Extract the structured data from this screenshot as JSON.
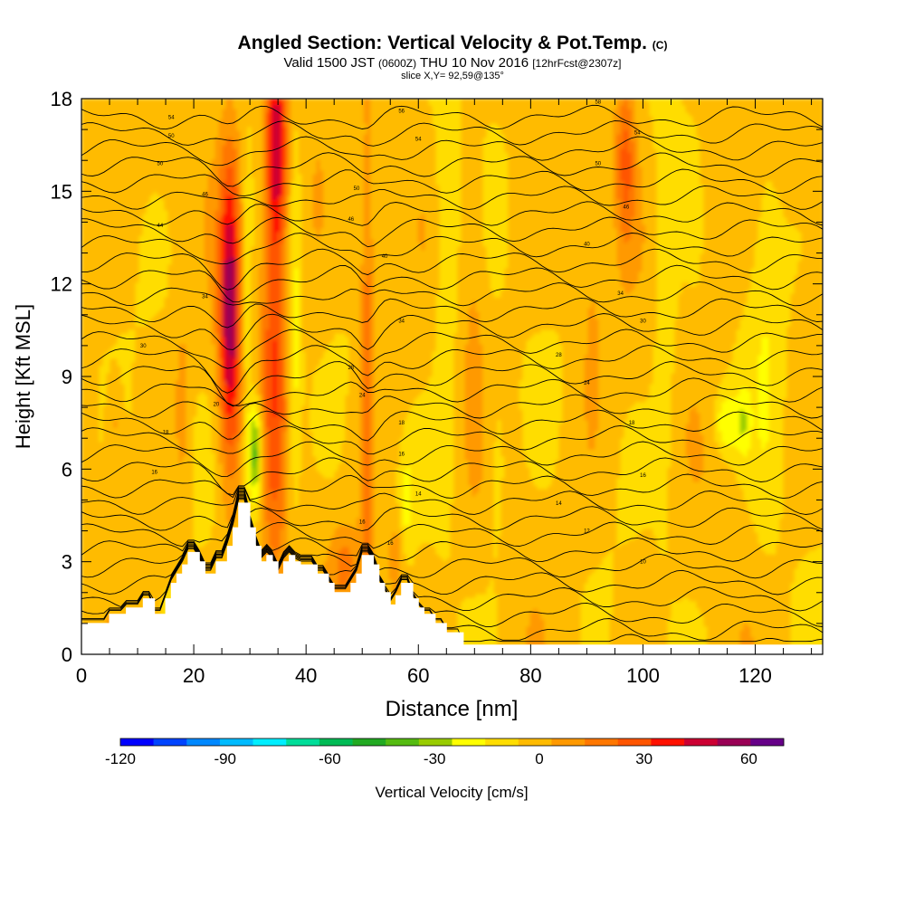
{
  "title": {
    "main": "Angled Section: Vertical Velocity & Pot.Temp.",
    "main_suffix": "(C)",
    "valid_prefix": "Valid 1500 JST",
    "valid_utc": "(0600Z)",
    "valid_date": "THU 10 Nov 2016",
    "valid_fcst": "[12hrFcst@2307z]",
    "slice": "slice X,Y= 92,59@135°"
  },
  "chart_data": {
    "type": "heatmap",
    "xlabel": "Distance [nm]",
    "ylabel": "Height [Kft MSL]",
    "xlim": [
      0,
      132
    ],
    "ylim": [
      0,
      18
    ],
    "x_ticks": [
      0,
      20,
      40,
      60,
      80,
      100,
      120
    ],
    "x_tick_labels": [
      "0",
      "20",
      "40",
      "60",
      "80",
      "100",
      "120"
    ],
    "y_ticks": [
      0,
      3,
      6,
      9,
      12,
      15,
      18
    ],
    "y_tick_labels": [
      "0",
      "3",
      "6",
      "9",
      "12",
      "15",
      "18"
    ],
    "colorbar": {
      "label": "Vertical Velocity [cm/s]",
      "min": -120,
      "max": 70,
      "step": 10,
      "tick_values": [
        -120,
        -90,
        -60,
        -30,
        0,
        30,
        60
      ],
      "tick_labels": [
        "-120",
        "-90",
        "-60",
        "-30",
        "0",
        "30",
        "60"
      ],
      "colors": [
        "#0000ff",
        "#0044ff",
        "#0088ff",
        "#00bbff",
        "#00eeff",
        "#00dd99",
        "#00bb55",
        "#22aa22",
        "#55bb11",
        "#99cc00",
        "#ffff00",
        "#ffdd00",
        "#ffbb00",
        "#ff9900",
        "#ff7700",
        "#ff5500",
        "#ff1100",
        "#cc0033",
        "#990055",
        "#660088"
      ]
    },
    "terrain_kft": [
      [
        0,
        1
      ],
      [
        5,
        1
      ],
      [
        5,
        1.3
      ],
      [
        8,
        1.3
      ],
      [
        8,
        1.5
      ],
      [
        11,
        1.5
      ],
      [
        11,
        1.8
      ],
      [
        13,
        1.8
      ],
      [
        13,
        1.3
      ],
      [
        15,
        1.3
      ],
      [
        15,
        1.8
      ],
      [
        16,
        1.8
      ],
      [
        16,
        2.3
      ],
      [
        17,
        2.3
      ],
      [
        17,
        2.6
      ],
      [
        18,
        2.6
      ],
      [
        18,
        2.9
      ],
      [
        19,
        2.9
      ],
      [
        19,
        3.3
      ],
      [
        21,
        3.3
      ],
      [
        21,
        3.0
      ],
      [
        22,
        3.0
      ],
      [
        22,
        2.6
      ],
      [
        24,
        2.6
      ],
      [
        24,
        3.0
      ],
      [
        26,
        3.0
      ],
      [
        26,
        3.5
      ],
      [
        27,
        3.5
      ],
      [
        27,
        4.1
      ],
      [
        28,
        4.1
      ],
      [
        28,
        4.9
      ],
      [
        30,
        4.9
      ],
      [
        30,
        4.1
      ],
      [
        31,
        4.1
      ],
      [
        31,
        3.5
      ],
      [
        32,
        3.5
      ],
      [
        32,
        3.0
      ],
      [
        33,
        3.0
      ],
      [
        33,
        3.2
      ],
      [
        34,
        3.2
      ],
      [
        34,
        3.0
      ],
      [
        35,
        3.0
      ],
      [
        35,
        2.6
      ],
      [
        36,
        2.6
      ],
      [
        36,
        3.0
      ],
      [
        37,
        3.0
      ],
      [
        37,
        3.2
      ],
      [
        38,
        3.2
      ],
      [
        38,
        3.0
      ],
      [
        39,
        3.0
      ],
      [
        39,
        2.9
      ],
      [
        42,
        2.9
      ],
      [
        42,
        2.6
      ],
      [
        44,
        2.6
      ],
      [
        44,
        2.3
      ],
      [
        45,
        2.3
      ],
      [
        45,
        2.0
      ],
      [
        48,
        2.0
      ],
      [
        48,
        2.3
      ],
      [
        49,
        2.3
      ],
      [
        49,
        2.6
      ],
      [
        50,
        2.6
      ],
      [
        50,
        3.2
      ],
      [
        52,
        3.2
      ],
      [
        52,
        2.9
      ],
      [
        53,
        2.9
      ],
      [
        53,
        2.3
      ],
      [
        54,
        2.3
      ],
      [
        54,
        2.0
      ],
      [
        55,
        2.0
      ],
      [
        55,
        1.6
      ],
      [
        56,
        1.6
      ],
      [
        56,
        1.9
      ],
      [
        57,
        1.9
      ],
      [
        57,
        2.3
      ],
      [
        59,
        2.3
      ],
      [
        59,
        1.8
      ],
      [
        60,
        1.8
      ],
      [
        60,
        1.5
      ],
      [
        61,
        1.5
      ],
      [
        61,
        1.3
      ],
      [
        63,
        1.3
      ],
      [
        63,
        1.0
      ],
      [
        65,
        1.0
      ],
      [
        65,
        0.7
      ],
      [
        68,
        0.7
      ],
      [
        68,
        0.3
      ],
      [
        132,
        0.3
      ],
      [
        132,
        0
      ]
    ],
    "theta_contour_levels": [
      10,
      12,
      14,
      16,
      18,
      20,
      22,
      24,
      26,
      28,
      30,
      32,
      34,
      36,
      38,
      40,
      42,
      44,
      46,
      48,
      50,
      52,
      54,
      56,
      58,
      60,
      62,
      64,
      66,
      68,
      70,
      72,
      74,
      76
    ],
    "theta_labels": [
      {
        "x": 16,
        "y": 17.4,
        "text": "54"
      },
      {
        "x": 16,
        "y": 16.8,
        "text": "50"
      },
      {
        "x": 14,
        "y": 15.9,
        "text": "50"
      },
      {
        "x": 22,
        "y": 14.9,
        "text": "46"
      },
      {
        "x": 14,
        "y": 13.9,
        "text": "44"
      },
      {
        "x": 22,
        "y": 11.6,
        "text": "34"
      },
      {
        "x": 11,
        "y": 10.0,
        "text": "30"
      },
      {
        "x": 24,
        "y": 8.1,
        "text": "20"
      },
      {
        "x": 15,
        "y": 7.2,
        "text": "18"
      },
      {
        "x": 13,
        "y": 5.9,
        "text": "16"
      },
      {
        "x": 57,
        "y": 17.6,
        "text": "56"
      },
      {
        "x": 60,
        "y": 16.7,
        "text": "54"
      },
      {
        "x": 49,
        "y": 15.1,
        "text": "50"
      },
      {
        "x": 48,
        "y": 14.1,
        "text": "46"
      },
      {
        "x": 54,
        "y": 12.9,
        "text": "40"
      },
      {
        "x": 57,
        "y": 10.8,
        "text": "34"
      },
      {
        "x": 48,
        "y": 9.3,
        "text": "28"
      },
      {
        "x": 50,
        "y": 8.4,
        "text": "24"
      },
      {
        "x": 57,
        "y": 7.5,
        "text": "18"
      },
      {
        "x": 57,
        "y": 6.5,
        "text": "16"
      },
      {
        "x": 60,
        "y": 5.2,
        "text": "14"
      },
      {
        "x": 50,
        "y": 4.3,
        "text": "16"
      },
      {
        "x": 55,
        "y": 3.6,
        "text": "16"
      },
      {
        "x": 92,
        "y": 17.9,
        "text": "58"
      },
      {
        "x": 99,
        "y": 16.9,
        "text": "54"
      },
      {
        "x": 92,
        "y": 15.9,
        "text": "50"
      },
      {
        "x": 97,
        "y": 14.5,
        "text": "46"
      },
      {
        "x": 90,
        "y": 13.3,
        "text": "40"
      },
      {
        "x": 96,
        "y": 11.7,
        "text": "34"
      },
      {
        "x": 100,
        "y": 10.8,
        "text": "30"
      },
      {
        "x": 85,
        "y": 9.7,
        "text": "28"
      },
      {
        "x": 90,
        "y": 8.8,
        "text": "24"
      },
      {
        "x": 98,
        "y": 7.5,
        "text": "18"
      },
      {
        "x": 100,
        "y": 5.8,
        "text": "16"
      },
      {
        "x": 85,
        "y": 4.9,
        "text": "14"
      },
      {
        "x": 90,
        "y": 4.0,
        "text": "12"
      },
      {
        "x": 100,
        "y": 3.0,
        "text": "10"
      }
    ]
  }
}
